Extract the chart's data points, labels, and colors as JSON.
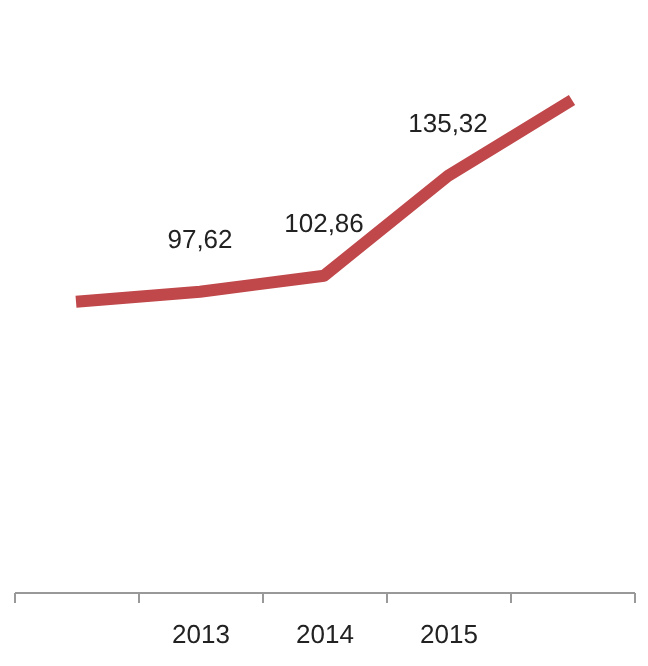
{
  "chart_data": {
    "type": "line",
    "categories": [
      null,
      "2013",
      "2014",
      "2015",
      null
    ],
    "series": [
      {
        "color": "#c0474a",
        "values": [
          94.4,
          97.62,
          102.86,
          135.32,
          160
        ],
        "value_labels": [
          null,
          "97,62",
          "102,86",
          "135,32",
          null
        ]
      }
    ],
    "grid": false,
    "marker": "none",
    "line_style": "solid"
  }
}
